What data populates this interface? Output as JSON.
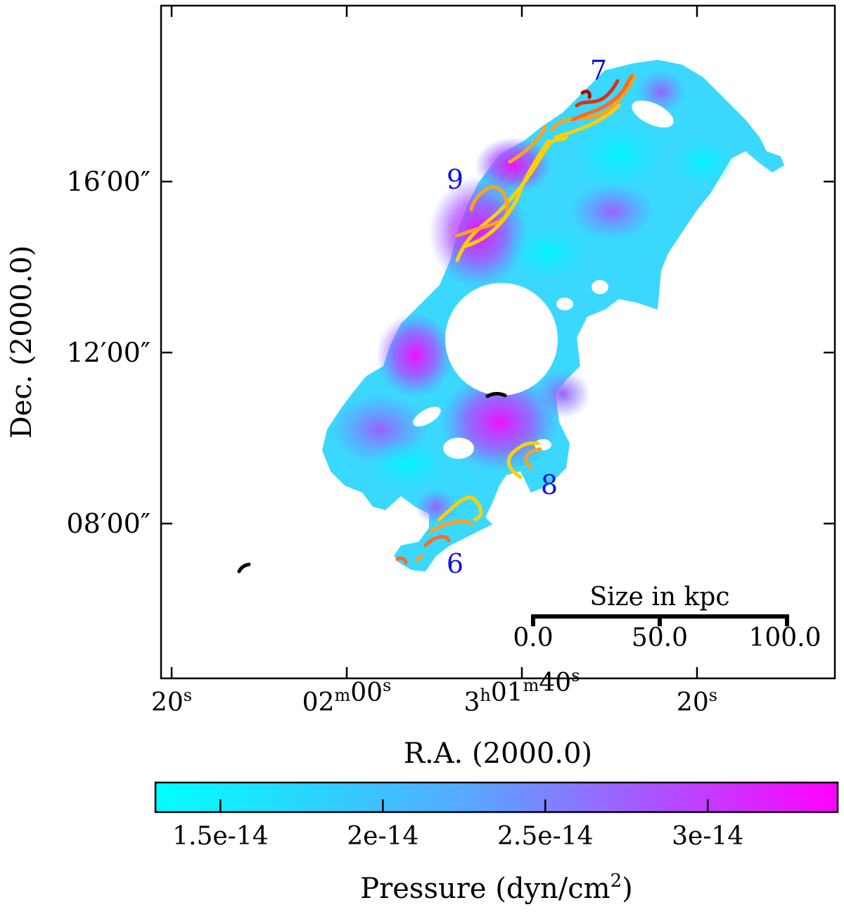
{
  "chart_data": {
    "type": "heatmap",
    "title": "",
    "xlabel": "R.A. (2000.0)",
    "ylabel": "Dec. (2000.0)",
    "x_ticks": [
      {
        "text": "20",
        "sup": "s",
        "ra_sec": 140
      },
      {
        "text": "02",
        "sup": "m",
        "text2": "00",
        "sup2": "s",
        "ra_sec": 120
      },
      {
        "text": "3",
        "sup": "h",
        "text2": "01",
        "sup2": "m",
        "text3": "40",
        "sup3": "s",
        "ra_sec": 100
      },
      {
        "text": "20",
        "sup": "s",
        "ra_sec": 80
      }
    ],
    "y_ticks": [
      {
        "label": "16′00″",
        "dec_arcmin": 16
      },
      {
        "label": "12′00″",
        "dec_arcmin": 12
      },
      {
        "label": "08′00″",
        "dec_arcmin": 8
      }
    ],
    "colorbar": {
      "label": "Pressure (dyn/cm",
      "label_sup": "2",
      "label_end": ")",
      "min": 1.3e-14,
      "max": 3.4e-14,
      "ticks": [
        {
          "value": 1.5e-14,
          "label": "1.5e-14"
        },
        {
          "value": 2e-14,
          "label": "2e-14"
        },
        {
          "value": 2.5e-14,
          "label": "2.5e-14"
        },
        {
          "value": 3e-14,
          "label": "3e-14"
        }
      ],
      "colors": [
        "#00ffff",
        "#ff00ff"
      ]
    },
    "scale_bar": {
      "title": "Size in kpc",
      "ticks": [
        "0.0",
        "50.0",
        "100.0"
      ]
    },
    "region_labels": [
      "7",
      "9",
      "8",
      "6"
    ],
    "contour_colors": [
      "#ffd000",
      "#ffa020",
      "#ff6a20",
      "#e03010",
      "#a01000"
    ]
  }
}
